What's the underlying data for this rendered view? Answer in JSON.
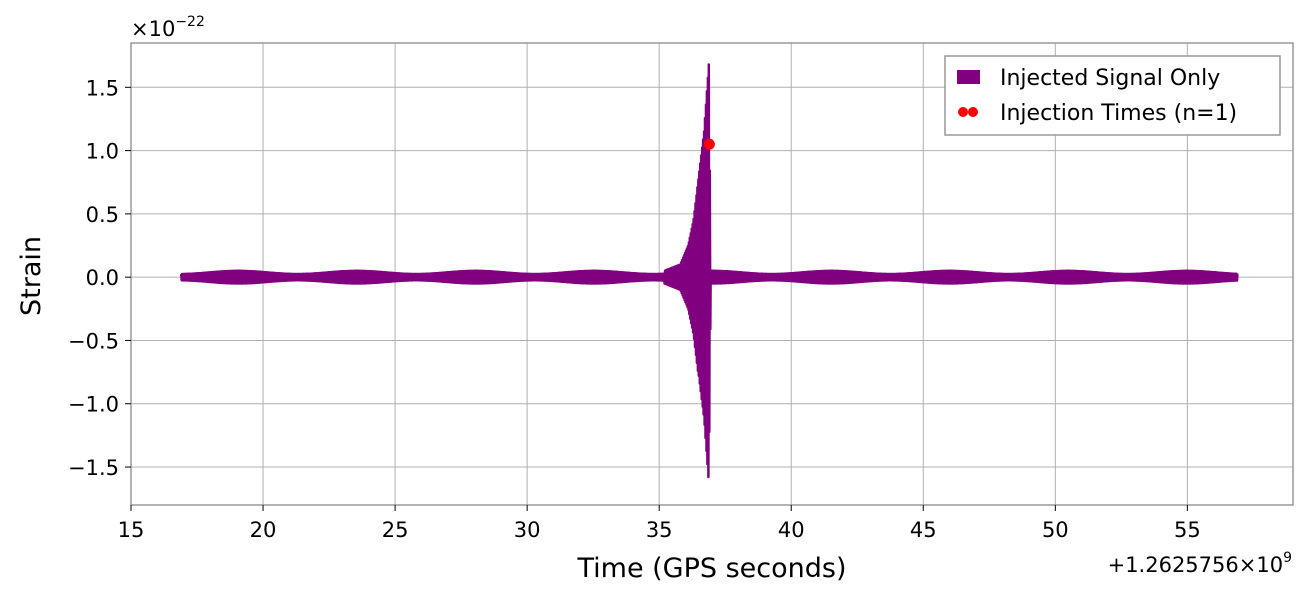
{
  "chart_data": {
    "type": "line",
    "xlabel": "Time (GPS seconds)",
    "ylabel": "Strain",
    "x_offset_label": "+1.2625756×10",
    "x_offset_exp": "9",
    "y_scale_label": "×10",
    "y_scale_exp": "−22",
    "xlim": [
      15,
      59
    ],
    "ylim": [
      -1.8,
      1.85
    ],
    "xticks": [
      15,
      20,
      25,
      30,
      35,
      40,
      45,
      50,
      55
    ],
    "xtick_labels": [
      "15",
      "20",
      "25",
      "30",
      "35",
      "40",
      "45",
      "50",
      "55"
    ],
    "yticks": [
      -1.5,
      -1.0,
      -0.5,
      0.0,
      0.5,
      1.0,
      1.5
    ],
    "ytick_labels": [
      "−1.5",
      "−1.0",
      "−0.5",
      "0.0",
      "0.5",
      "1.0",
      "1.5"
    ],
    "grid": true,
    "legend_position": "top-right",
    "series": [
      {
        "name": "Injected Signal Only",
        "color": "#800080",
        "x_range": [
          16.9,
          56.9
        ],
        "baseline_amplitude": 0.05,
        "envelope": [
          {
            "x": 35.2,
            "y": 0.05
          },
          {
            "x": 35.8,
            "y": 0.1
          },
          {
            "x": 36.1,
            "y": 0.25
          },
          {
            "x": 36.3,
            "y": 0.45
          },
          {
            "x": 36.5,
            "y": 0.8
          },
          {
            "x": 36.7,
            "y": 1.15
          },
          {
            "x": 36.88,
            "y": 1.68
          },
          {
            "x": 36.95,
            "y": 0.05
          }
        ],
        "negative_peak": -1.63
      },
      {
        "name": "Injection Times (n=1)",
        "color": "#ff0000",
        "type": "scatter",
        "points": [
          {
            "x": 36.9,
            "y": 1.05
          }
        ]
      }
    ]
  }
}
